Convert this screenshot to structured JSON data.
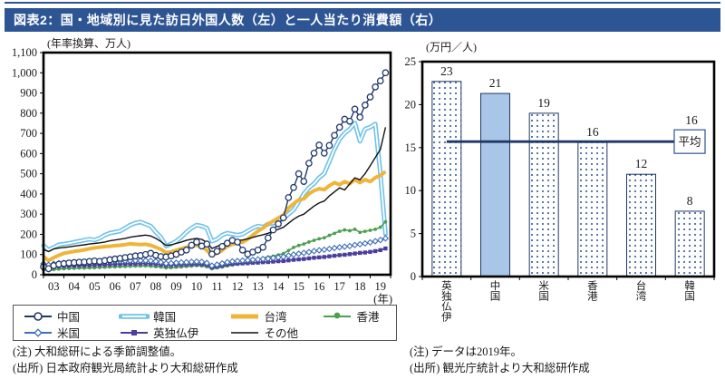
{
  "page_title": "図表2：国・地域別に見た訪日外国人数（左）と一人当たり消費額（右）",
  "accent_colors": {
    "title_bar": "#2e5593",
    "frame": "#000000",
    "average_line": "#1f3864",
    "dot_pattern": "#2e5593",
    "highlight_bar": "#a9c6e8"
  },
  "notes": {
    "left": [
      "(注) 大和総研による季節調整値。",
      "(出所) 日本政府観光局統計より大和総研作成"
    ],
    "right": [
      "(注) データは2019年。",
      "(出所) 観光庁統計より大和総研作成"
    ]
  },
  "chart_data": [
    {
      "type": "line",
      "unit_label": "(年率換算、万人)",
      "x_axis_suffix": "(年)",
      "x_start": 2003,
      "x_step": 0.25,
      "x_end": 2020,
      "x_tick_labels": [
        "03",
        "04",
        "05",
        "06",
        "07",
        "08",
        "09",
        "10",
        "11",
        "12",
        "13",
        "14",
        "15",
        "16",
        "17",
        "18",
        "19"
      ],
      "ylim": [
        0,
        1100
      ],
      "y_step": 100,
      "legend_rows": [
        [
          "中国",
          "韓国",
          "台湾",
          "香港"
        ],
        [
          "米国",
          "英独仏伊",
          "その他"
        ]
      ],
      "series": [
        {
          "name": "中国",
          "color": "#20386b",
          "marker": "circle",
          "values": [
            40,
            30,
            45,
            52,
            55,
            58,
            60,
            62,
            63,
            66,
            68,
            66,
            70,
            74,
            78,
            81,
            85,
            89,
            93,
            95,
            100,
            106,
            96,
            90,
            88,
            93,
            101,
            112,
            122,
            146,
            162,
            142,
            152,
            102,
            116,
            140,
            156,
            170,
            162,
            122,
            102,
            112,
            122,
            136,
            182,
            222,
            252,
            282,
            382,
            432,
            500,
            462,
            552,
            602,
            642,
            602,
            640,
            690,
            730,
            770,
            760,
            820,
            780,
            840,
            880,
            930,
            960,
            1000
          ]
        },
        {
          "name": "韓国",
          "color": "#6fc2e9",
          "marker": "tube",
          "values": [
            145,
            122,
            136,
            148,
            152,
            156,
            161,
            166,
            171,
            176,
            172,
            181,
            196,
            206,
            211,
            216,
            231,
            246,
            256,
            261,
            251,
            241,
            211,
            186,
            142,
            152,
            166,
            186,
            211,
            231,
            246,
            241,
            231,
            166,
            176,
            196,
            206,
            201,
            196,
            201,
            216,
            231,
            241,
            236,
            251,
            256,
            266,
            276,
            301,
            321,
            361,
            401,
            431,
            451,
            481,
            501,
            561,
            621,
            671,
            701,
            721,
            751,
            661,
            721,
            731,
            746,
            501,
            201
          ]
        },
        {
          "name": "台湾",
          "color": "#efb53b",
          "marker": "none",
          "values": [
            90,
            70,
            85,
            96,
            106,
            111,
            116,
            119,
            123,
            129,
            133,
            136,
            139,
            141,
            144,
            146,
            149,
            153,
            151,
            149,
            151,
            146,
            136,
            126,
            109,
            113,
            121,
            129,
            136,
            141,
            146,
            141,
            121,
            96,
            106,
            121,
            141,
            151,
            156,
            161,
            176,
            196,
            216,
            231,
            251,
            266,
            281,
            296,
            331,
            351,
            371,
            376,
            401,
            416,
            426,
            421,
            441,
            456,
            446,
            461,
            451,
            471,
            456,
            471,
            461,
            481,
            491,
            511
          ]
        },
        {
          "name": "香港",
          "color": "#4e9f52",
          "marker": "dot",
          "values": [
            25,
            20,
            26,
            28,
            30,
            31,
            32,
            33,
            33,
            34,
            35,
            36,
            37,
            38,
            39,
            40,
            41,
            42,
            43,
            43,
            44,
            42,
            40,
            38,
            34,
            35,
            37,
            39,
            41,
            43,
            45,
            44,
            40,
            30,
            34,
            38,
            44,
            48,
            52,
            56,
            62,
            70,
            76,
            82,
            88,
            92,
            98,
            105,
            120,
            135,
            145,
            152,
            162,
            170,
            178,
            183,
            195,
            205,
            215,
            222,
            218,
            225,
            210,
            215,
            220,
            225,
            235,
            262
          ]
        },
        {
          "name": "米国",
          "color": "#3f6fb6",
          "marker": "diamond",
          "values": [
            55,
            48,
            54,
            57,
            58,
            60,
            61,
            62,
            63,
            64,
            65,
            66,
            66,
            67,
            68,
            68,
            69,
            70,
            70,
            70,
            70,
            69,
            66,
            62,
            56,
            57,
            59,
            61,
            62,
            64,
            65,
            64,
            58,
            45,
            50,
            56,
            62,
            66,
            68,
            70,
            72,
            74,
            76,
            78,
            80,
            83,
            86,
            89,
            95,
            100,
            104,
            108,
            112,
            117,
            121,
            124,
            128,
            132,
            136,
            139,
            142,
            147,
            151,
            155,
            160,
            166,
            172,
            180
          ]
        },
        {
          "name": "英独仏伊",
          "color": "#4b3e9e",
          "marker": "square",
          "values": [
            40,
            36,
            40,
            42,
            43,
            44,
            45,
            46,
            46,
            47,
            48,
            49,
            50,
            51,
            52,
            53,
            54,
            55,
            55,
            56,
            56,
            55,
            53,
            50,
            47,
            48,
            49,
            50,
            51,
            52,
            53,
            52,
            48,
            36,
            40,
            45,
            50,
            53,
            55,
            56,
            57,
            59,
            60,
            62,
            63,
            65,
            67,
            68,
            71,
            74,
            76,
            78,
            81,
            84,
            86,
            88,
            91,
            94,
            97,
            99,
            102,
            105,
            108,
            110,
            113,
            117,
            122,
            130
          ]
        },
        {
          "name": "その他",
          "color": "#111111",
          "marker": "none",
          "values": [
            125,
            115,
            128,
            132,
            135,
            138,
            142,
            145,
            148,
            152,
            155,
            158,
            162,
            168,
            172,
            176,
            180,
            186,
            190,
            193,
            196,
            192,
            180,
            165,
            145,
            148,
            155,
            162,
            170,
            176,
            180,
            175,
            160,
            130,
            140,
            152,
            160,
            165,
            170,
            172,
            178,
            185,
            192,
            198,
            205,
            215,
            225,
            235,
            255,
            275,
            290,
            300,
            320,
            340,
            355,
            365,
            390,
            410,
            430,
            420,
            450,
            480,
            470,
            500,
            540,
            580,
            620,
            730
          ]
        }
      ]
    },
    {
      "type": "bar",
      "unit_label": "(万円／人)",
      "categories": [
        "英独仏伊",
        "中国",
        "米国",
        "香港",
        "台湾",
        "韓国"
      ],
      "values": [
        22.7,
        21.3,
        19.0,
        15.6,
        11.9,
        7.6
      ],
      "value_labels": [
        "23",
        "21",
        "19",
        "16",
        "12",
        "8"
      ],
      "highlight_index": 1,
      "average": {
        "value": 15.7,
        "label": "平均",
        "value_label": "16"
      },
      "ylim": [
        0,
        25
      ],
      "y_step": 5
    }
  ]
}
